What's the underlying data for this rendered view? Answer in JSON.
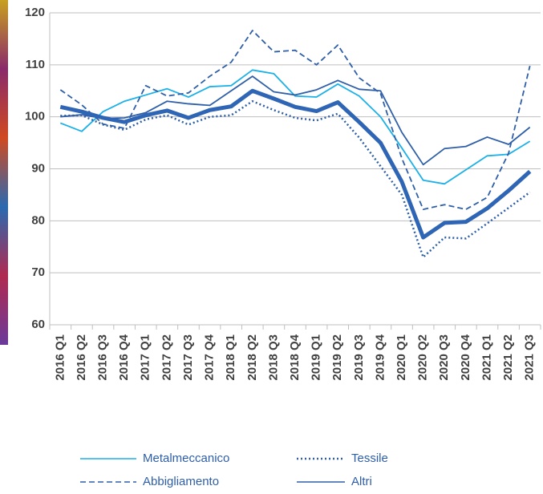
{
  "chart_data": {
    "type": "line",
    "categories": [
      "2016 Q1",
      "2016 Q2",
      "2016 Q3",
      "2016 Q4",
      "2017 Q1",
      "2017 Q2",
      "2017 Q3",
      "2017 Q4",
      "2018 Q1",
      "2018 Q2",
      "2018 Q3",
      "2018 Q4",
      "2019 Q1",
      "2019 Q2",
      "2019 Q3",
      "2019 Q4",
      "2020 Q1",
      "2020 Q2",
      "2020 Q3",
      "2020 Q4",
      "2021 Q1",
      "2021 Q2",
      "2021 Q3"
    ],
    "series": [
      {
        "name": "Metalmeccanico",
        "color": "#1ab0e8",
        "values": [
          98.8,
          97.2,
          101,
          103,
          104.2,
          105.4,
          103.8,
          105.8,
          106,
          109,
          108.3,
          104,
          103.8,
          106.3,
          104,
          100,
          94,
          87.8,
          87.1,
          89.8,
          92.5,
          92.8,
          95.3
        ]
      },
      {
        "name": "Tessile",
        "color": "#2e5fa8",
        "dash": "dotted",
        "values": [
          100.2,
          100.3,
          98.5,
          97.5,
          99.5,
          100.3,
          98.5,
          100,
          100.3,
          103,
          101.3,
          99.8,
          99.3,
          100.6,
          96,
          90.5,
          85,
          73,
          76.8,
          76.6,
          79.5,
          82.5,
          85.5
        ]
      },
      {
        "name": "Abbigliamento",
        "color": "#2e5fa8",
        "dash": "dashed",
        "values": [
          105.2,
          102.3,
          98.6,
          97.8,
          106,
          104,
          104.6,
          107.8,
          110.5,
          116.6,
          112.5,
          112.8,
          110,
          113.8,
          107.5,
          104.5,
          92,
          82.2,
          83.1,
          82.2,
          84.5,
          93,
          109.8
        ]
      },
      {
        "name": "Altri",
        "color": "#2e5fa8",
        "values": [
          100,
          100.4,
          99.7,
          99.8,
          100.8,
          103,
          102.5,
          102.2,
          105,
          107.8,
          104.8,
          104.2,
          105.2,
          107,
          105.3,
          105,
          97,
          90.8,
          93.9,
          94.3,
          96.1,
          94.7,
          98
        ]
      },
      {
        "color": "#2f65b5",
        "width": 5,
        "values": [
          101.9,
          101,
          99.8,
          99,
          100.3,
          101.2,
          99.8,
          101.3,
          102,
          105,
          103.5,
          101.9,
          101.1,
          102.8,
          99,
          95,
          87.5,
          76.8,
          79.6,
          79.8,
          82.4,
          85.8,
          89.5
        ]
      }
    ],
    "ylim": [
      60,
      120
    ],
    "yticks": [
      60,
      70,
      80,
      90,
      100,
      110,
      120
    ],
    "grid": true
  }
}
